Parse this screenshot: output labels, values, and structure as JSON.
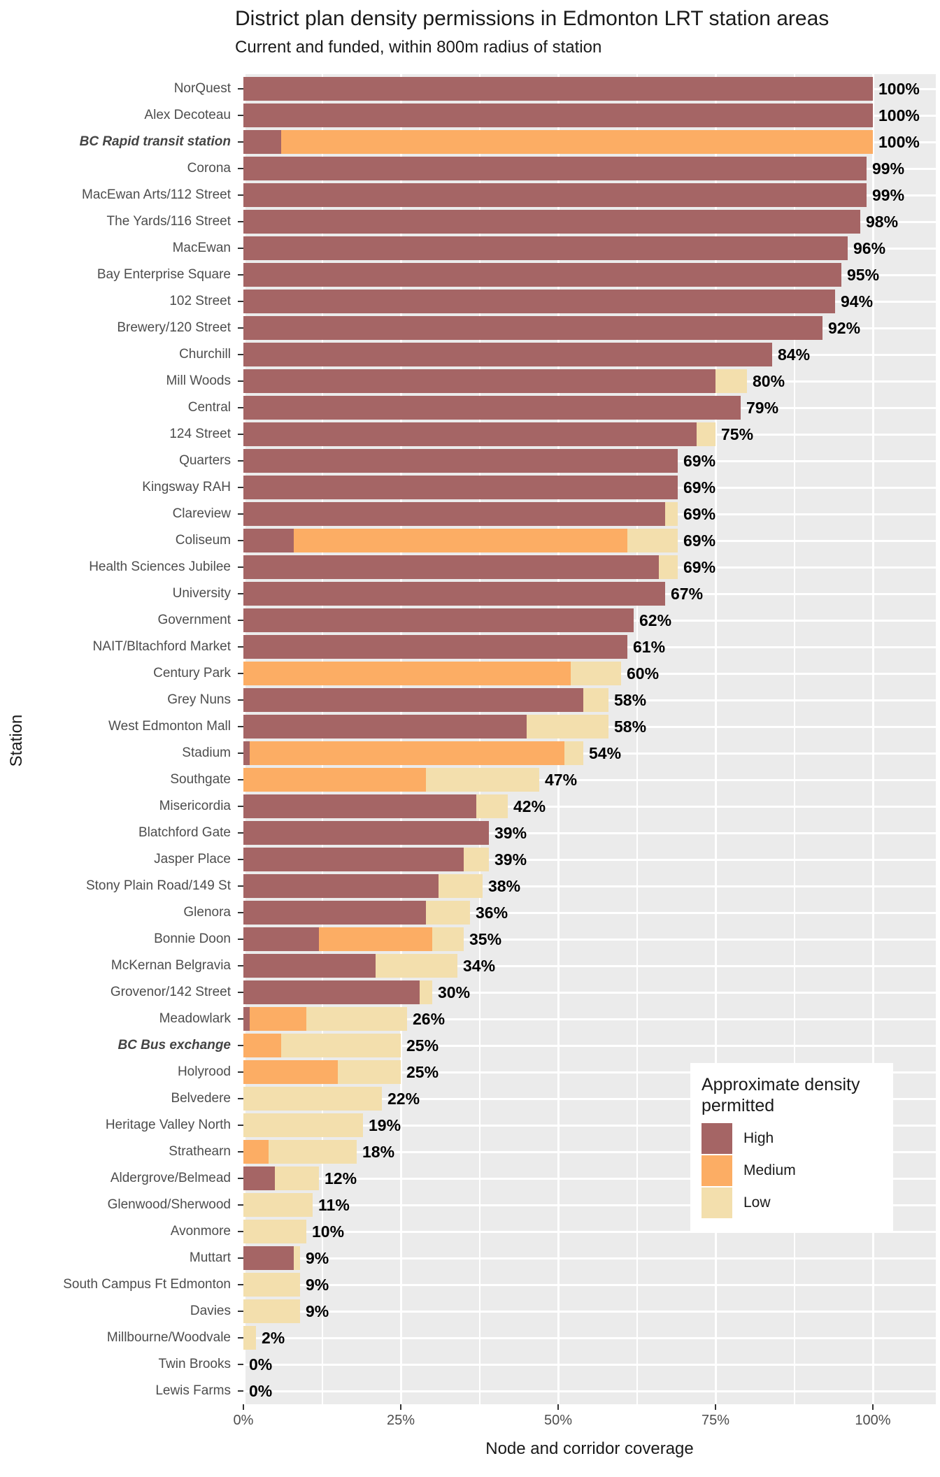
{
  "title": "District plan density permissions in Edmonton LRT station areas",
  "subtitle": "Current and funded, within 800m radius of station",
  "x_axis": {
    "title": "Node and corridor coverage",
    "tick_labels": [
      "0%",
      "25%",
      "50%",
      "75%",
      "100%"
    ],
    "tick_values": [
      0,
      25,
      50,
      75,
      100
    ]
  },
  "y_axis": {
    "title": "Station"
  },
  "legend": {
    "title": "Approximate density permitted",
    "items": [
      {
        "label": "High",
        "color": "#A56565"
      },
      {
        "label": "Medium",
        "color": "#FCAD64"
      },
      {
        "label": "Low",
        "color": "#F3DFAD"
      }
    ]
  },
  "colors": {
    "high": "#A56565",
    "medium": "#FCAD64",
    "low": "#F3DFAD",
    "panel_background": "#EBEBEB",
    "gridline": "#FFFFFF",
    "axis_text": "#4D4D4D",
    "title_text": "#1A1A1A",
    "value_label": "#000000",
    "legend_background": "#FFFFFF"
  },
  "chart_data": {
    "type": "bar",
    "orientation": "horizontal-stacked",
    "xlabel": "Node and corridor coverage",
    "ylabel": "Station",
    "xlim": [
      0,
      110
    ],
    "grid": true,
    "legend_position": "inside-bottom-right",
    "series_names": [
      "High",
      "Medium",
      "Low"
    ],
    "stations": [
      {
        "name": "NorQuest",
        "high": 100,
        "medium": 0,
        "low": 0,
        "label": "100%",
        "emphasized": false
      },
      {
        "name": "Alex Decoteau",
        "high": 100,
        "medium": 0,
        "low": 0,
        "label": "100%",
        "emphasized": false
      },
      {
        "name": "BC Rapid transit station",
        "high": 6,
        "medium": 94,
        "low": 0,
        "label": "100%",
        "emphasized": true
      },
      {
        "name": "Corona",
        "high": 99,
        "medium": 0,
        "low": 0,
        "label": "99%",
        "emphasized": false
      },
      {
        "name": "MacEwan Arts/112 Street",
        "high": 99,
        "medium": 0,
        "low": 0,
        "label": "99%",
        "emphasized": false
      },
      {
        "name": "The Yards/116 Street",
        "high": 98,
        "medium": 0,
        "low": 0,
        "label": "98%",
        "emphasized": false
      },
      {
        "name": "MacEwan",
        "high": 96,
        "medium": 0,
        "low": 0,
        "label": "96%",
        "emphasized": false
      },
      {
        "name": "Bay Enterprise Square",
        "high": 95,
        "medium": 0,
        "low": 0,
        "label": "95%",
        "emphasized": false
      },
      {
        "name": "102 Street",
        "high": 94,
        "medium": 0,
        "low": 0,
        "label": "94%",
        "emphasized": false
      },
      {
        "name": "Brewery/120 Street",
        "high": 92,
        "medium": 0,
        "low": 0,
        "label": "92%",
        "emphasized": false
      },
      {
        "name": "Churchill",
        "high": 84,
        "medium": 0,
        "low": 0,
        "label": "84%",
        "emphasized": false
      },
      {
        "name": "Mill Woods",
        "high": 75,
        "medium": 0,
        "low": 5,
        "label": "80%",
        "emphasized": false
      },
      {
        "name": "Central",
        "high": 79,
        "medium": 0,
        "low": 0,
        "label": "79%",
        "emphasized": false
      },
      {
        "name": "124 Street",
        "high": 72,
        "medium": 0,
        "low": 3,
        "label": "75%",
        "emphasized": false
      },
      {
        "name": "Quarters",
        "high": 69,
        "medium": 0,
        "low": 0,
        "label": "69%",
        "emphasized": false
      },
      {
        "name": "Kingsway RAH",
        "high": 69,
        "medium": 0,
        "low": 0,
        "label": "69%",
        "emphasized": false
      },
      {
        "name": "Clareview",
        "high": 67,
        "medium": 0,
        "low": 2,
        "label": "69%",
        "emphasized": false
      },
      {
        "name": "Coliseum",
        "high": 8,
        "medium": 53,
        "low": 8,
        "label": "69%",
        "emphasized": false
      },
      {
        "name": "Health Sciences Jubilee",
        "high": 66,
        "medium": 0,
        "low": 3,
        "label": "69%",
        "emphasized": false
      },
      {
        "name": "University",
        "high": 67,
        "medium": 0,
        "low": 0,
        "label": "67%",
        "emphasized": false
      },
      {
        "name": "Government",
        "high": 62,
        "medium": 0,
        "low": 0,
        "label": "62%",
        "emphasized": false
      },
      {
        "name": "NAIT/Bltachford Market",
        "high": 61,
        "medium": 0,
        "low": 0,
        "label": "61%",
        "emphasized": false
      },
      {
        "name": "Century Park",
        "high": 0,
        "medium": 52,
        "low": 8,
        "label": "60%",
        "emphasized": false
      },
      {
        "name": "Grey Nuns",
        "high": 54,
        "medium": 0,
        "low": 4,
        "label": "58%",
        "emphasized": false
      },
      {
        "name": "West Edmonton Mall",
        "high": 45,
        "medium": 0,
        "low": 13,
        "label": "58%",
        "emphasized": false
      },
      {
        "name": "Stadium",
        "high": 1,
        "medium": 50,
        "low": 3,
        "label": "54%",
        "emphasized": false
      },
      {
        "name": "Southgate",
        "high": 0,
        "medium": 29,
        "low": 18,
        "label": "47%",
        "emphasized": false
      },
      {
        "name": "Misericordia",
        "high": 37,
        "medium": 0,
        "low": 5,
        "label": "42%",
        "emphasized": false
      },
      {
        "name": "Blatchford Gate",
        "high": 39,
        "medium": 0,
        "low": 0,
        "label": "39%",
        "emphasized": false
      },
      {
        "name": "Jasper Place",
        "high": 35,
        "medium": 0,
        "low": 4,
        "label": "39%",
        "emphasized": false
      },
      {
        "name": "Stony Plain Road/149 St",
        "high": 31,
        "medium": 0,
        "low": 7,
        "label": "38%",
        "emphasized": false
      },
      {
        "name": "Glenora",
        "high": 29,
        "medium": 0,
        "low": 7,
        "label": "36%",
        "emphasized": false
      },
      {
        "name": "Bonnie Doon",
        "high": 12,
        "medium": 18,
        "low": 5,
        "label": "35%",
        "emphasized": false
      },
      {
        "name": "McKernan Belgravia",
        "high": 21,
        "medium": 0,
        "low": 13,
        "label": "34%",
        "emphasized": false
      },
      {
        "name": "Grovenor/142 Street",
        "high": 28,
        "medium": 0,
        "low": 2,
        "label": "30%",
        "emphasized": false
      },
      {
        "name": "Meadowlark",
        "high": 1,
        "medium": 9,
        "low": 16,
        "label": "26%",
        "emphasized": false
      },
      {
        "name": "BC Bus exchange",
        "high": 0,
        "medium": 6,
        "low": 19,
        "label": "25%",
        "emphasized": true
      },
      {
        "name": "Holyrood",
        "high": 0,
        "medium": 15,
        "low": 10,
        "label": "25%",
        "emphasized": false
      },
      {
        "name": "Belvedere",
        "high": 0,
        "medium": 0,
        "low": 22,
        "label": "22%",
        "emphasized": false
      },
      {
        "name": "Heritage Valley North",
        "high": 0,
        "medium": 0,
        "low": 19,
        "label": "19%",
        "emphasized": false
      },
      {
        "name": "Strathearn",
        "high": 0,
        "medium": 4,
        "low": 14,
        "label": "18%",
        "emphasized": false
      },
      {
        "name": "Aldergrove/Belmead",
        "high": 5,
        "medium": 0,
        "low": 7,
        "label": "12%",
        "emphasized": false
      },
      {
        "name": "Glenwood/Sherwood",
        "high": 0,
        "medium": 0,
        "low": 11,
        "label": "11%",
        "emphasized": false
      },
      {
        "name": "Avonmore",
        "high": 0,
        "medium": 0,
        "low": 10,
        "label": "10%",
        "emphasized": false
      },
      {
        "name": "Muttart",
        "high": 8,
        "medium": 0,
        "low": 1,
        "label": "9%",
        "emphasized": false
      },
      {
        "name": "South Campus Ft Edmonton",
        "high": 0,
        "medium": 0,
        "low": 9,
        "label": "9%",
        "emphasized": false
      },
      {
        "name": "Davies",
        "high": 0,
        "medium": 0,
        "low": 9,
        "label": "9%",
        "emphasized": false
      },
      {
        "name": "Millbourne/Woodvale",
        "high": 0,
        "medium": 0,
        "low": 2,
        "label": "2%",
        "emphasized": false
      },
      {
        "name": "Twin Brooks",
        "high": 0,
        "medium": 0,
        "low": 0,
        "label": "0%",
        "emphasized": false
      },
      {
        "name": "Lewis Farms",
        "high": 0,
        "medium": 0,
        "low": 0,
        "label": "0%",
        "emphasized": false
      }
    ]
  }
}
